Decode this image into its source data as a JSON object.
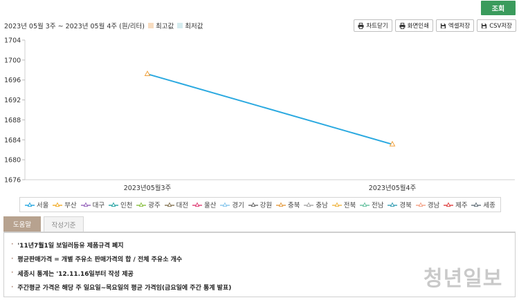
{
  "search_button": "조회",
  "toolbar": {
    "range_text": "2023년 05월 3주 ~ 2023년 05월 4주 (원/리터)",
    "legend_max": {
      "label": "최고값",
      "color": "#f7dcc0"
    },
    "legend_min": {
      "label": "최저값",
      "color": "#d5ecef"
    },
    "buttons": [
      {
        "label": "차트닫기",
        "icon": "printer-icon"
      },
      {
        "label": "화면인쇄",
        "icon": "printer-icon"
      },
      {
        "label": "엑셀저장",
        "icon": "save-icon"
      },
      {
        "label": "CSV저장",
        "icon": "save-icon"
      }
    ]
  },
  "chart_data": {
    "type": "line",
    "categories": [
      "2023년05월3주",
      "2023년05월4주"
    ],
    "series": [
      {
        "name": "서울",
        "values": [
          1697.2,
          1683.1
        ],
        "color": "#2aa9e0"
      }
    ],
    "ylim": [
      1676,
      1704
    ],
    "yticks": [
      1676,
      1680,
      1684,
      1688,
      1692,
      1696,
      1700,
      1704
    ],
    "grid": "vertical-left-axis-only"
  },
  "legend": [
    {
      "name": "서울",
      "color": "#2aa9e0"
    },
    {
      "name": "부산",
      "color": "#f2b134"
    },
    {
      "name": "대구",
      "color": "#9b6bbf"
    },
    {
      "name": "인천",
      "color": "#2fa8a8"
    },
    {
      "name": "광주",
      "color": "#8fc24a"
    },
    {
      "name": "대전",
      "color": "#8a7a5a"
    },
    {
      "name": "울산",
      "color": "#e0457b"
    },
    {
      "name": "경기",
      "color": "#8cc9ee"
    },
    {
      "name": "강원",
      "color": "#6f6f6f"
    },
    {
      "name": "충북",
      "color": "#e6a04a"
    },
    {
      "name": "충남",
      "color": "#a9a9a9"
    },
    {
      "name": "전북",
      "color": "#f0b84a"
    },
    {
      "name": "전남",
      "color": "#6cc4a4"
    },
    {
      "name": "경북",
      "color": "#3fa3b8"
    },
    {
      "name": "경남",
      "color": "#f4a58a"
    },
    {
      "name": "제주",
      "color": "#e04848"
    },
    {
      "name": "세종",
      "color": "#6a7780"
    }
  ],
  "tabs": [
    {
      "label": "도움말",
      "active": true
    },
    {
      "label": "작성기준",
      "active": false
    }
  ],
  "help_lines": [
    "'11년7월1일 보일러등유 제품규격 폐지",
    "평균판매가격 = 개별 주유소 판매가격의 합 / 전체 주유소 개수",
    "세종시 통계는 '12.11.16일부터 작성 제공",
    "주간평균 가격은 해당 주 일요일~목요일의 평균 가격임(금요일에 주간 통계 발표)"
  ],
  "watermark": "청년일보"
}
